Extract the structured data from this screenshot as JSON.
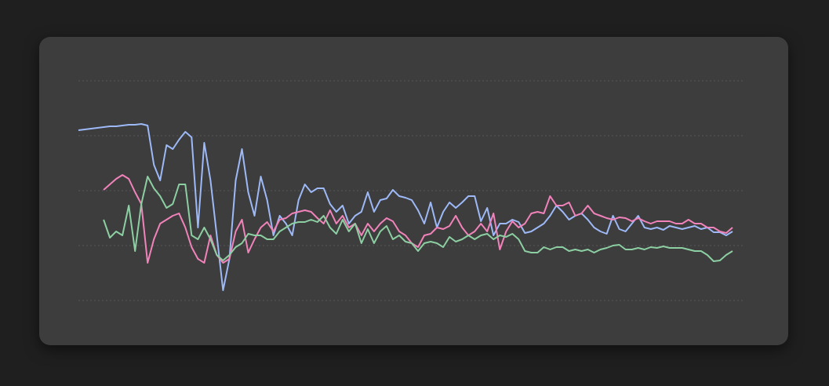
{
  "chart_data": {
    "type": "line",
    "grid": true,
    "x": [
      0,
      1,
      2,
      3,
      4,
      5,
      6,
      7,
      8,
      9,
      10,
      11,
      12,
      13,
      14,
      15,
      16,
      17,
      18,
      19,
      20,
      21,
      22,
      23,
      24,
      25,
      26,
      27,
      28,
      29,
      30,
      31,
      32,
      33,
      34,
      35,
      36,
      37,
      38,
      39,
      40,
      41,
      42,
      43,
      44,
      45,
      46,
      47,
      48,
      49,
      50,
      51,
      52,
      53,
      54,
      55,
      56,
      57,
      58,
      59,
      60,
      61,
      62,
      63,
      64,
      65,
      66,
      67,
      68,
      69,
      70,
      71,
      72,
      73,
      74,
      75,
      76,
      77,
      78,
      79,
      80,
      81,
      82,
      83,
      84,
      85,
      86,
      87,
      88,
      89,
      90,
      91,
      92,
      93,
      94,
      95,
      96,
      97,
      98,
      99,
      100,
      101,
      102,
      103,
      104
    ],
    "xlim": [
      0,
      106
    ],
    "ylim": [
      0,
      280
    ],
    "yticks": [
      0,
      70,
      140,
      210,
      280
    ],
    "series": [
      {
        "color": "#9db9f7",
        "values": [
          217,
          218,
          219,
          220,
          221,
          222,
          222,
          223,
          224,
          224,
          225,
          223,
          173,
          153,
          198,
          193,
          205,
          215,
          208,
          93,
          201,
          153,
          83,
          13,
          53,
          153,
          193,
          138,
          108,
          158,
          128,
          83,
          108,
          98,
          83,
          128,
          148,
          138,
          143,
          143,
          123,
          113,
          121,
          98,
          108,
          113,
          138,
          113,
          128,
          130,
          141,
          133,
          131,
          128,
          115,
          98,
          125,
          93,
          113,
          125,
          118,
          125,
          133,
          133,
          101,
          118,
          83,
          98,
          98,
          103,
          100,
          86,
          88,
          93,
          98,
          108,
          121,
          113,
          103,
          108,
          111,
          103,
          93,
          88,
          85,
          108,
          91,
          88,
          98,
          108,
          93,
          91,
          93,
          90,
          95,
          93,
          91,
          93,
          95,
          91,
          93,
          87,
          87,
          83,
          88
        ]
      },
      {
        "color": "#f183ba",
        "values": [
          null,
          null,
          null,
          null,
          141,
          148,
          155,
          160,
          155,
          138,
          123,
          48,
          78,
          98,
          103,
          108,
          111,
          93,
          68,
          53,
          48,
          83,
          58,
          48,
          53,
          88,
          103,
          61,
          78,
          93,
          100,
          88,
          103,
          105,
          111,
          113,
          115,
          113,
          105,
          98,
          115,
          98,
          108,
          93,
          98,
          83,
          98,
          88,
          98,
          105,
          101,
          88,
          83,
          73,
          68,
          83,
          85,
          93,
          91,
          95,
          108,
          93,
          83,
          88,
          98,
          88,
          111,
          65,
          88,
          101,
          93,
          98,
          111,
          113,
          111,
          133,
          121,
          121,
          125,
          108,
          111,
          121,
          111,
          108,
          105,
          103,
          106,
          105,
          101,
          105,
          101,
          98,
          101,
          101,
          101,
          98,
          98,
          103,
          98,
          98,
          93,
          93,
          88,
          86,
          93
        ]
      },
      {
        "color": "#8ccfa2",
        "values": [
          null,
          null,
          null,
          null,
          103,
          80,
          88,
          83,
          121,
          63,
          123,
          158,
          143,
          133,
          118,
          123,
          148,
          148,
          83,
          78,
          93,
          78,
          58,
          51,
          58,
          68,
          73,
          85,
          83,
          83,
          78,
          78,
          88,
          93,
          98,
          100,
          100,
          103,
          100,
          108,
          93,
          85,
          103,
          88,
          98,
          73,
          91,
          73,
          88,
          95,
          78,
          83,
          75,
          73,
          63,
          73,
          75,
          73,
          68,
          81,
          75,
          78,
          83,
          78,
          83,
          85,
          78,
          83,
          81,
          85,
          78,
          63,
          61,
          61,
          68,
          65,
          68,
          68,
          63,
          65,
          63,
          65,
          61,
          65,
          67,
          70,
          71,
          65,
          65,
          67,
          65,
          68,
          67,
          69,
          67,
          67,
          67,
          65,
          63,
          63,
          58,
          50,
          51,
          58,
          63
        ]
      }
    ]
  }
}
